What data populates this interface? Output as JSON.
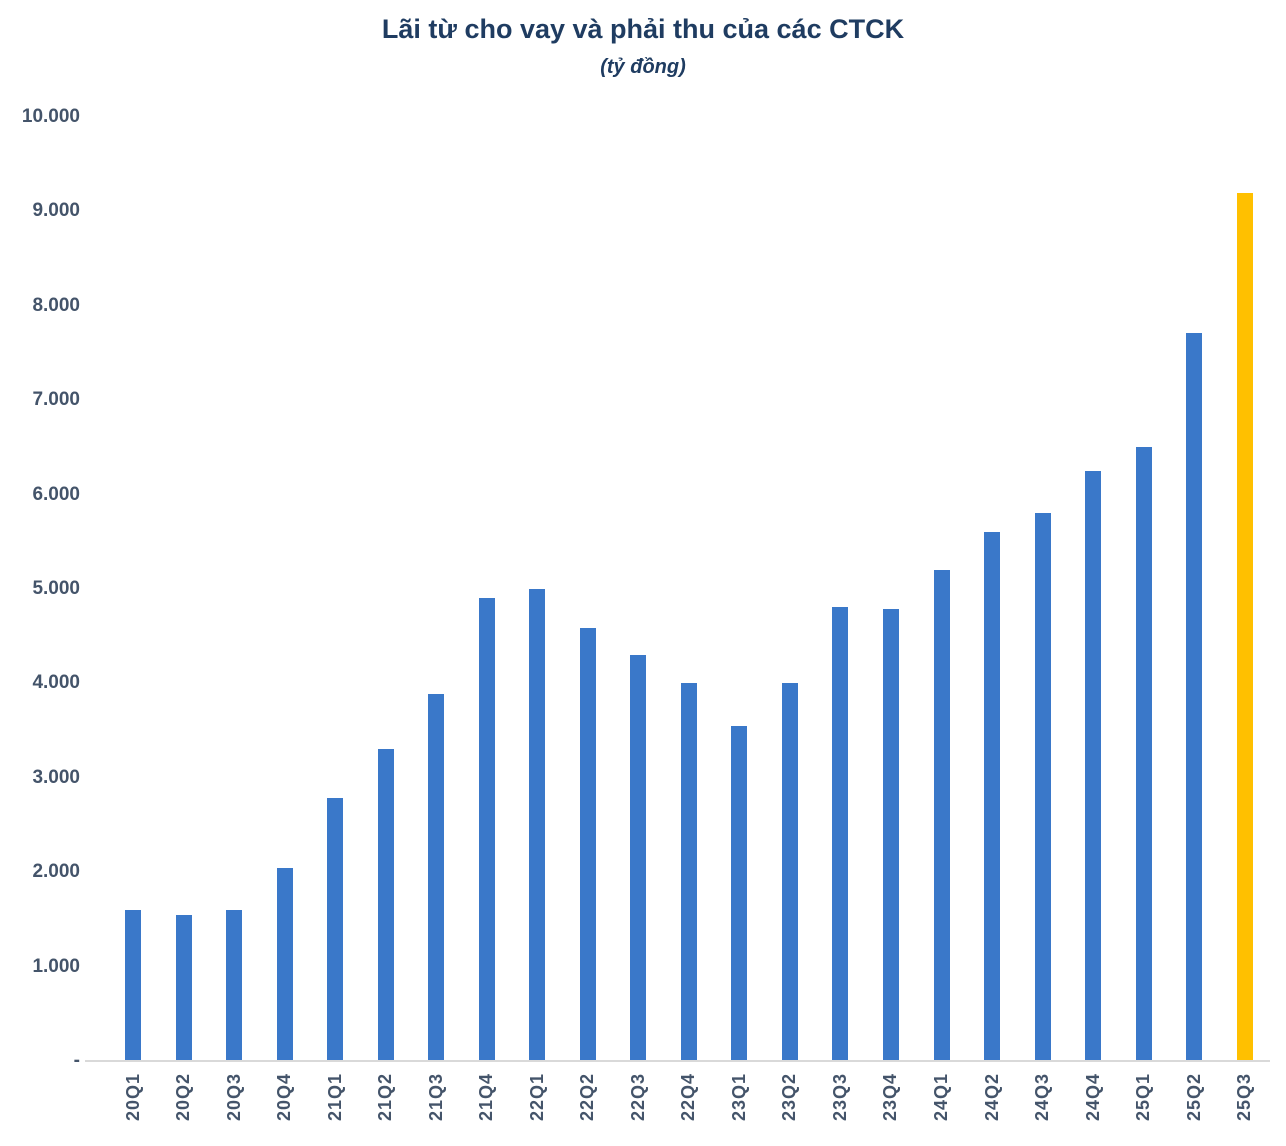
{
  "chart_data": {
    "type": "bar",
    "title": "Lãi từ cho vay và phải thu của các CTCK",
    "subtitle": "(tỷ đồng)",
    "categories": [
      "20Q1",
      "20Q2",
      "20Q3",
      "20Q4",
      "21Q1",
      "21Q2",
      "21Q3",
      "21Q4",
      "22Q1",
      "22Q2",
      "22Q3",
      "22Q4",
      "23Q1",
      "23Q2",
      "23Q3",
      "23Q4",
      "24Q1",
      "24Q2",
      "24Q3",
      "24Q4",
      "25Q1",
      "25Q2",
      "25Q3"
    ],
    "values": [
      1600,
      1550,
      1600,
      2040,
      2790,
      3300,
      3890,
      4900,
      5000,
      4590,
      4300,
      4000,
      3550,
      4000,
      4810,
      4790,
      5200,
      5600,
      5810,
      6250,
      6500,
      7710,
      9200
    ],
    "highlight_index": 22,
    "xlabel": "",
    "ylabel": "",
    "ylim": [
      0,
      10000
    ],
    "grid": false,
    "legend_position": "none",
    "y_ticks": [
      {
        "label": "10.000",
        "value": 10000
      },
      {
        "label": "9.000",
        "value": 9000
      },
      {
        "label": "8.000",
        "value": 8000
      },
      {
        "label": "7.000",
        "value": 7000
      },
      {
        "label": "6.000",
        "value": 6000
      },
      {
        "label": "5.000",
        "value": 5000
      },
      {
        "label": "4.000",
        "value": 4000
      },
      {
        "label": "3.000",
        "value": 3000
      },
      {
        "label": "2.000",
        "value": 2000
      },
      {
        "label": "1.000",
        "value": 1000
      },
      {
        "label": "-",
        "value": 0
      }
    ],
    "colors": {
      "bar": "#3A78C9",
      "highlight": "#FFC000",
      "axis_line": "#D9D9D9",
      "title": "#1F3C61",
      "tick": "#44546A"
    }
  }
}
